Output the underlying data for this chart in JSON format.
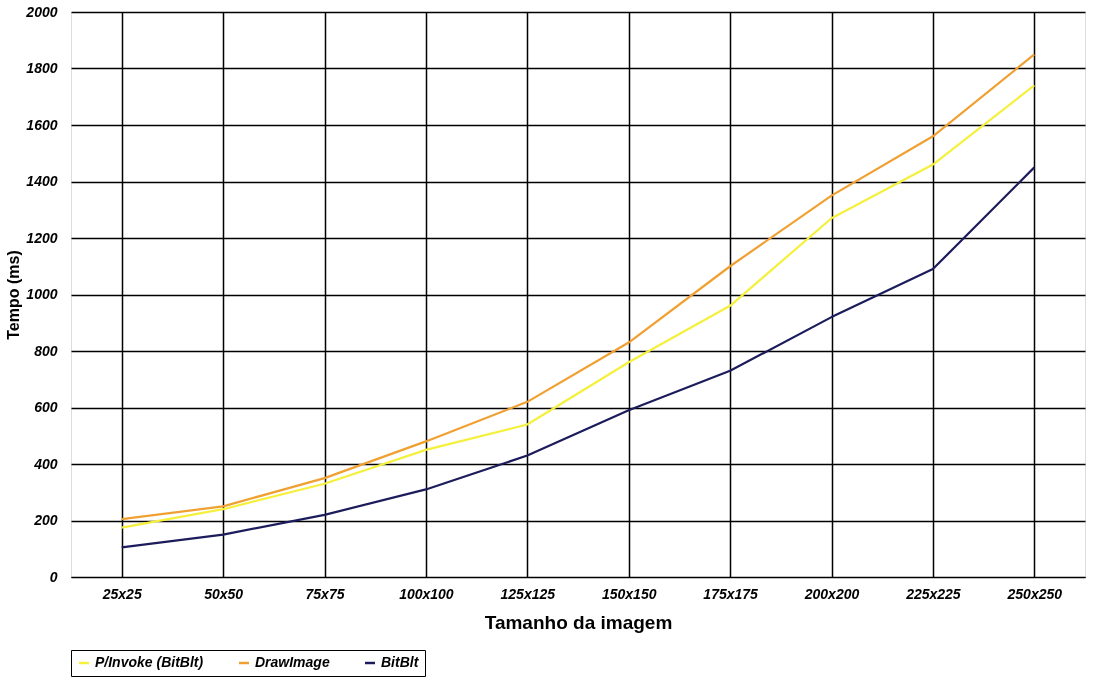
{
  "chart_data": {
    "type": "line",
    "xlabel": "Tamanho da imagem",
    "ylabel": "Tempo (ms)",
    "categories": [
      "25x25",
      "50x50",
      "75x75",
      "100x100",
      "125x125",
      "150x150",
      "175x175",
      "200x200",
      "225x225",
      "250x250"
    ],
    "series": [
      {
        "name": "P/Invoke (BitBlt)",
        "color": "#f5f03c",
        "values": [
          175,
          240,
          330,
          450,
          540,
          760,
          960,
          1270,
          1460,
          1740
        ]
      },
      {
        "name": "DrawImage",
        "color": "#f0a030",
        "values": [
          205,
          250,
          350,
          480,
          620,
          830,
          1100,
          1350,
          1560,
          1850
        ]
      },
      {
        "name": "BitBlt",
        "color": "#1c1c5c",
        "values": [
          105,
          150,
          220,
          310,
          430,
          590,
          730,
          920,
          1090,
          1450
        ]
      }
    ],
    "ylim": [
      0,
      2000
    ],
    "yticks": [
      0,
      200,
      400,
      600,
      800,
      1000,
      1200,
      1400,
      1600,
      1800,
      2000
    ],
    "grid": true,
    "legend": "bottom",
    "marker": "none",
    "line_style": "solid"
  }
}
